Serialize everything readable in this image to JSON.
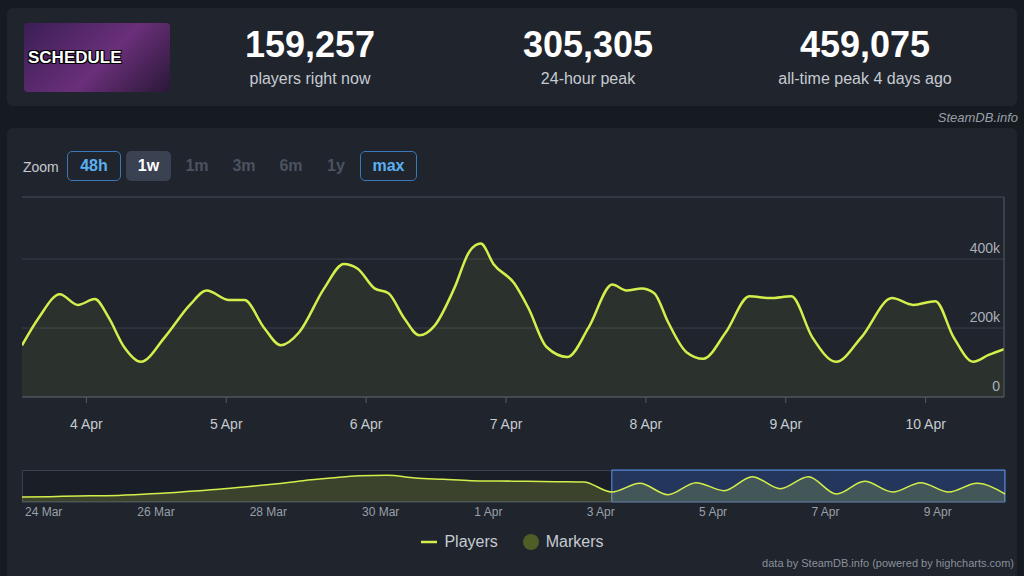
{
  "header": {
    "icon_text": "SCHEDULE",
    "stats": [
      {
        "value": "159,257",
        "label": "players right now"
      },
      {
        "value": "305,305",
        "label": "24-hour peak"
      },
      {
        "value": "459,075",
        "label": "all-time peak 4 days ago"
      }
    ],
    "source": "SteamDB.info"
  },
  "zoom": {
    "label": "Zoom",
    "buttons": [
      "48h",
      "1w",
      "1m",
      "3m",
      "6m",
      "1y",
      "max"
    ],
    "selected": "1w",
    "disabled": [
      "1m",
      "3m",
      "6m",
      "1y"
    ]
  },
  "chart_data": [
    {
      "type": "area",
      "x": [
        3.54,
        3.66,
        3.81,
        3.94,
        4.06,
        4.16,
        4.27,
        4.39,
        4.56,
        4.74,
        4.86,
        5.02,
        5.13,
        5.27,
        5.39,
        5.52,
        5.7,
        5.84,
        5.94,
        6.06,
        6.16,
        6.27,
        6.38,
        6.49,
        6.63,
        6.74,
        6.82,
        6.91,
        7.06,
        7.16,
        7.29,
        7.44,
        7.59,
        7.76,
        7.86,
        7.97,
        8.06,
        8.16,
        8.29,
        8.41,
        8.57,
        8.74,
        8.89,
        9.04,
        9.19,
        9.36,
        9.54,
        9.76,
        9.91,
        10.07,
        10.2,
        10.34,
        10.45,
        10.56
      ],
      "series": [
        {
          "name": "Players",
          "color": "#d4ef4b",
          "values": [
            150000,
            230000,
            298000,
            267000,
            284000,
            230000,
            145000,
            102000,
            173000,
            267000,
            309000,
            281000,
            281000,
            201000,
            150000,
            187000,
            315000,
            386000,
            372000,
            315000,
            301000,
            230000,
            179000,
            207000,
            315000,
            423000,
            445000,
            386000,
            329000,
            258000,
            145000,
            116000,
            201000,
            326000,
            309000,
            315000,
            301000,
            216000,
            130000,
            111000,
            187000,
            292000,
            287000,
            292000,
            173000,
            102000,
            173000,
            287000,
            267000,
            278000,
            173000,
            102000,
            122000,
            139000
          ]
        }
      ],
      "xlim": [
        3.54,
        10.56
      ],
      "xticks": [
        {
          "value": 4,
          "label": "4 Apr"
        },
        {
          "value": 5,
          "label": "5 Apr"
        },
        {
          "value": 6,
          "label": "6 Apr"
        },
        {
          "value": 7,
          "label": "7 Apr"
        },
        {
          "value": 8,
          "label": "8 Apr"
        },
        {
          "value": 9,
          "label": "9 Apr"
        },
        {
          "value": 10,
          "label": "10 Apr"
        }
      ],
      "ylim": [
        0,
        580000
      ],
      "yticks": [
        0,
        {
          "value": 200000,
          "label": "200k"
        },
        {
          "value": 400000,
          "label": "400k"
        }
      ],
      "grid": true,
      "legend": "bottom"
    },
    {
      "type": "area",
      "categories": [
        "24 Mar",
        null,
        null,
        null,
        "26 Mar",
        null,
        null,
        null,
        "28 Mar",
        null,
        null,
        null,
        "30 Mar",
        null,
        null,
        null,
        "1 Apr",
        null,
        null,
        null,
        "3 Apr",
        null,
        null,
        null,
        "5 Apr",
        null,
        null,
        null,
        "7 Apr",
        null,
        null,
        null,
        "9 Apr",
        null,
        null,
        null
      ],
      "series": [
        {
          "name": "Players",
          "color": "#d4ef4b",
          "values": [
            75000,
            80000,
            90000,
            95000,
            110000,
            130000,
            160000,
            190000,
            228000,
            270000,
            320000,
            360000,
            395000,
            400000,
            360000,
            340000,
            320000,
            315000,
            310000,
            305000,
            300000,
            150000,
            280000,
            110000,
            290000,
            170000,
            380000,
            200000,
            380000,
            120000,
            310000,
            150000,
            290000,
            150000,
            280000,
            120000
          ]
        }
      ],
      "ylim": [
        0,
        480000
      ],
      "tick_labels": "x",
      "grid": false
    }
  ],
  "legend_entries": [
    {
      "name": "Players",
      "color": "#d4ef4b",
      "marker": "line"
    },
    {
      "name": "Markers",
      "color": "#4f5d27",
      "marker": "circle"
    }
  ],
  "credit": "data by SteamDB.info (powered by highcharts.com)"
}
